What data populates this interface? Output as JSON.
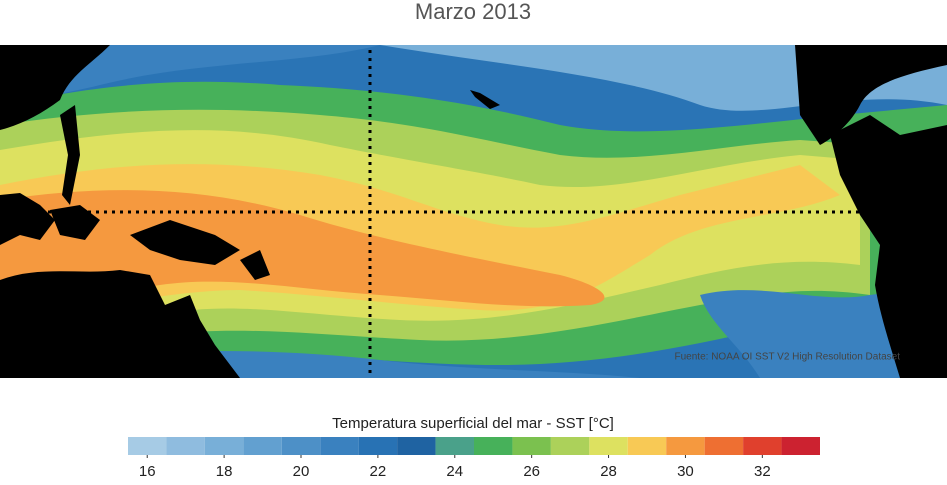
{
  "title": "Marzo 2013",
  "map": {
    "source": "Fuente: NOAA OI SST V2 High Resolution Dataset"
  },
  "colorbar": {
    "label": "Temperatura superficial del mar - SST  [°C]",
    "bins": [
      15.5,
      16.5,
      17.5,
      18.5,
      19.5,
      20.5,
      21.5,
      22.5,
      23.5,
      24.5,
      25.5,
      26.5,
      27.5,
      28.5,
      29.5,
      30.5,
      31.5,
      32.5,
      33.5
    ],
    "colors": [
      "#a6cbe5",
      "#8fbcdf",
      "#78afd8",
      "#62a0d0",
      "#4d90c7",
      "#3a81bf",
      "#2872b4",
      "#1f63a2",
      "#4aa18a",
      "#47b15a",
      "#7bc14f",
      "#acd15a",
      "#dde160",
      "#f8c955",
      "#f5993f",
      "#ee6f32",
      "#e0402d",
      "#cc2230"
    ],
    "ticks": [
      16,
      18,
      20,
      22,
      24,
      26,
      28,
      30,
      32
    ]
  }
}
